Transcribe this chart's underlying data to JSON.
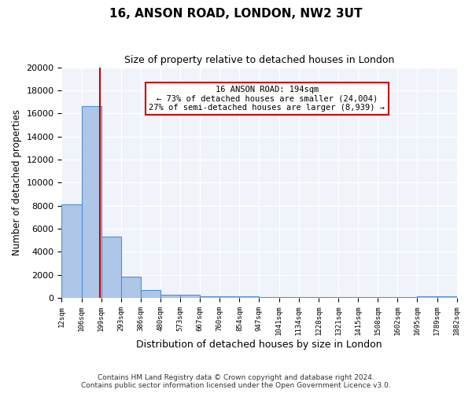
{
  "title": "16, ANSON ROAD, LONDON, NW2 3UT",
  "subtitle": "Size of property relative to detached houses in London",
  "xlabel": "Distribution of detached houses by size in London",
  "ylabel": "Number of detached properties",
  "footer_line1": "Contains HM Land Registry data © Crown copyright and database right 2024.",
  "footer_line2": "Contains public sector information licensed under the Open Government Licence v3.0.",
  "bar_color": "#aec6e8",
  "bar_edge_color": "#4a90d9",
  "background_color": "#f0f4fa",
  "annotation_box_color": "#cc0000",
  "vline_color": "#cc0000",
  "annotation_text_line1": "16 ANSON ROAD: 194sqm",
  "annotation_text_line2": "← 73% of detached houses are smaller (24,004)",
  "annotation_text_line3": "27% of semi-detached houses are larger (8,939) →",
  "property_size": 194,
  "categories": [
    "12sqm",
    "106sqm",
    "199sqm",
    "293sqm",
    "386sqm",
    "480sqm",
    "573sqm",
    "667sqm",
    "760sqm",
    "854sqm",
    "947sqm",
    "1041sqm",
    "1134sqm",
    "1228sqm",
    "1321sqm",
    "1415sqm",
    "1508sqm",
    "1602sqm",
    "1695sqm",
    "1789sqm",
    "1882sqm"
  ],
  "bin_edges": [
    12,
    106,
    199,
    293,
    386,
    480,
    573,
    667,
    760,
    854,
    947,
    1041,
    1134,
    1228,
    1321,
    1415,
    1508,
    1602,
    1695,
    1789,
    1882
  ],
  "values": [
    8100,
    16600,
    5300,
    1850,
    700,
    300,
    250,
    150,
    130,
    110,
    100,
    90,
    80,
    70,
    60,
    55,
    50,
    45,
    140,
    160
  ],
  "ylim": [
    0,
    20000
  ],
  "yticks": [
    0,
    2000,
    4000,
    6000,
    8000,
    10000,
    12000,
    14000,
    16000,
    18000,
    20000
  ]
}
